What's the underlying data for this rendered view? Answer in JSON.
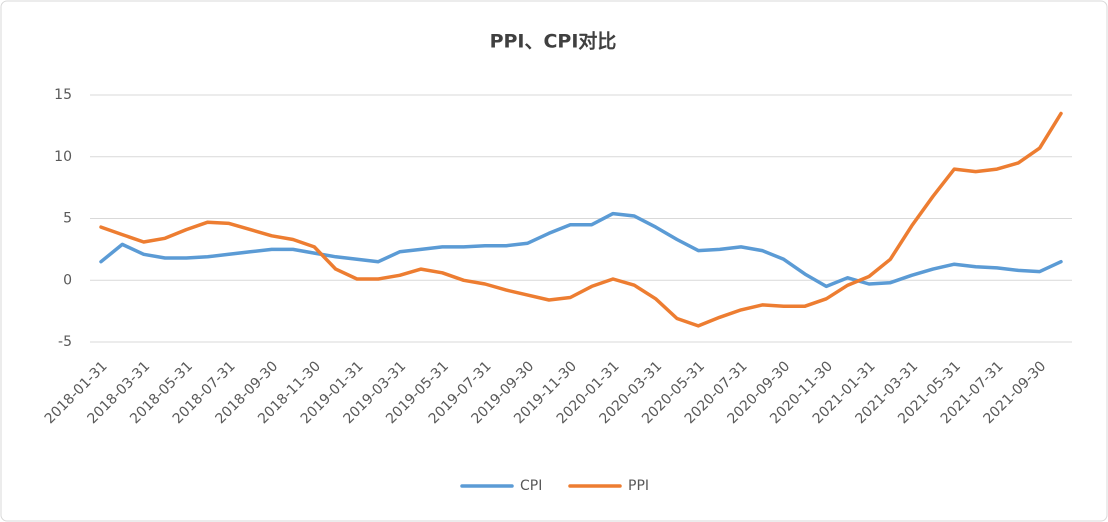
{
  "chart_data": {
    "type": "line",
    "title": "PPI、CPI对比",
    "categories": [
      "2018-01-31",
      null,
      "2018-03-31",
      null,
      "2018-05-31",
      null,
      "2018-07-31",
      null,
      "2018-09-30",
      null,
      "2018-11-30",
      null,
      "2019-01-31",
      null,
      "2019-03-31",
      null,
      "2019-05-31",
      null,
      "2019-07-31",
      null,
      "2019-09-30",
      null,
      "2019-11-30",
      null,
      "2020-01-31",
      null,
      "2020-03-31",
      null,
      "2020-05-31",
      null,
      "2020-07-31",
      null,
      "2020-09-30",
      null,
      "2020-11-30",
      null,
      "2021-01-31",
      null,
      "2021-03-31",
      null,
      "2021-05-31",
      null,
      "2021-07-31",
      null,
      "2021-09-30",
      null
    ],
    "series": [
      {
        "name": "CPI",
        "color": "#5b9bd5",
        "values": [
          1.5,
          2.9,
          2.1,
          1.8,
          1.8,
          1.9,
          2.1,
          2.3,
          2.5,
          2.5,
          2.2,
          1.9,
          1.7,
          1.5,
          2.3,
          2.5,
          2.7,
          2.7,
          2.8,
          2.8,
          3.0,
          3.8,
          4.5,
          4.5,
          5.4,
          5.2,
          4.3,
          3.3,
          2.4,
          2.5,
          2.7,
          2.4,
          1.7,
          0.5,
          -0.5,
          0.2,
          -0.3,
          -0.2,
          0.4,
          0.9,
          1.3,
          1.1,
          1.0,
          0.8,
          0.7,
          1.5
        ]
      },
      {
        "name": "PPI",
        "color": "#ed7d31",
        "values": [
          4.3,
          3.7,
          3.1,
          3.4,
          4.1,
          4.7,
          4.6,
          4.1,
          3.6,
          3.3,
          2.7,
          0.9,
          0.1,
          0.1,
          0.4,
          0.9,
          0.6,
          0.0,
          -0.3,
          -0.8,
          -1.2,
          -1.6,
          -1.4,
          -0.5,
          0.1,
          -0.4,
          -1.5,
          -3.1,
          -3.7,
          -3.0,
          -2.4,
          -2.0,
          -2.1,
          -2.1,
          -1.5,
          -0.4,
          0.3,
          1.7,
          4.4,
          6.8,
          9.0,
          8.8,
          9.0,
          9.5,
          10.7,
          13.5
        ]
      }
    ],
    "ylim": [
      -5,
      15
    ],
    "yticks": [
      -5,
      0,
      5,
      10,
      15
    ],
    "grid": true,
    "legend": "bottom"
  }
}
